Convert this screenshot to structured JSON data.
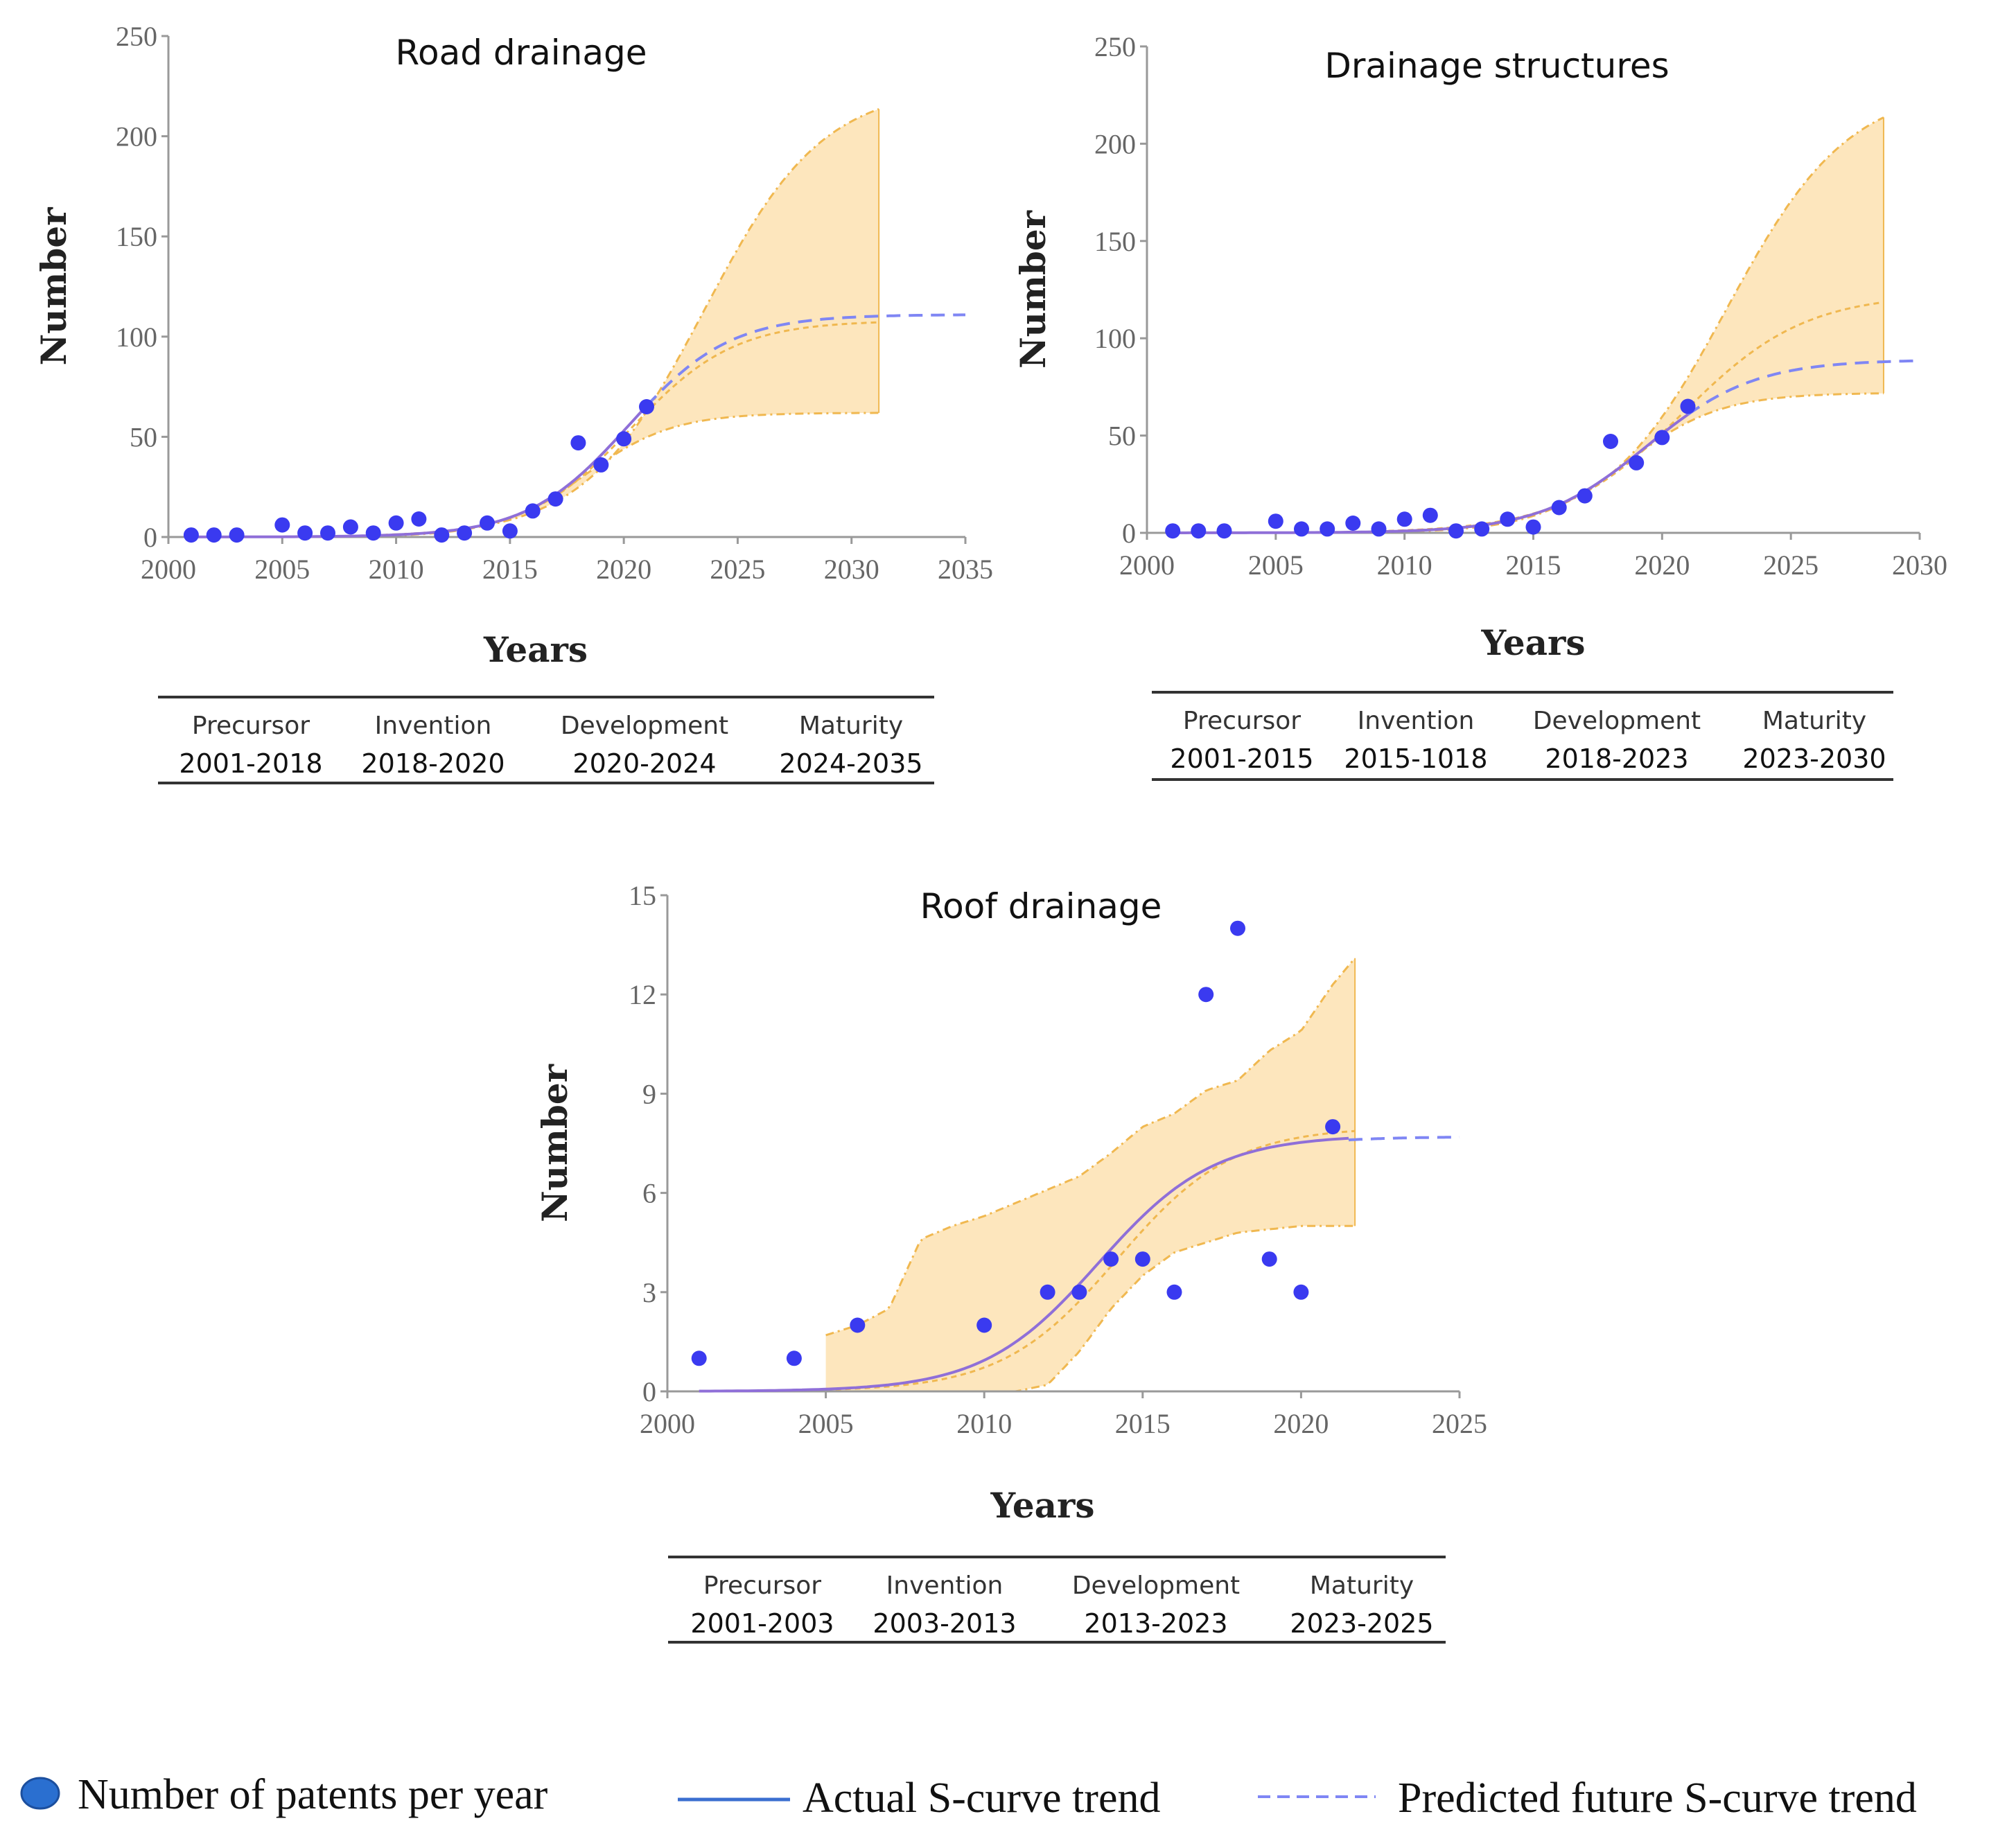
{
  "colors": {
    "point": "#3a3af0",
    "actual": "#8f6fd8",
    "predicted": "#7f86f4",
    "band_fill": "#fde6bd",
    "band_edge": "#f0b850",
    "axis": "#999999",
    "legend_line": "#3b6fd0",
    "legend_marker": "#2a6fd0"
  },
  "legend": {
    "points_label": "Number of patents per year",
    "actual_label": "Actual S-curve trend",
    "predicted_label": "Predicted future S-curve trend"
  },
  "chart_data": [
    {
      "id": "road",
      "type": "scatter",
      "title": "Road drainage",
      "xlabel": "Years",
      "ylabel": "Number",
      "xlim": [
        2000,
        2035
      ],
      "ylim": [
        0,
        250
      ],
      "xticks": [
        "2000",
        "2005",
        "2010",
        "2015",
        "2020",
        "2025",
        "2030",
        "2035"
      ],
      "yticks": [
        "0",
        "50",
        "100",
        "150",
        "200",
        "250"
      ],
      "points": [
        [
          2001,
          1
        ],
        [
          2002,
          1
        ],
        [
          2003,
          1
        ],
        [
          2005,
          6
        ],
        [
          2006,
          2
        ],
        [
          2007,
          2
        ],
        [
          2008,
          5
        ],
        [
          2009,
          2
        ],
        [
          2010,
          7
        ],
        [
          2011,
          9
        ],
        [
          2012,
          1
        ],
        [
          2013,
          2
        ],
        [
          2014,
          7
        ],
        [
          2015,
          3
        ],
        [
          2016,
          13
        ],
        [
          2017,
          19
        ],
        [
          2018,
          47
        ],
        [
          2019,
          36
        ],
        [
          2020,
          49
        ],
        [
          2021,
          65
        ]
      ],
      "actual_curve": {
        "K": 111,
        "x0": 2020.2,
        "k": 0.45,
        "from": 2001,
        "to": 2021
      },
      "predicted_curve": {
        "K": 111,
        "x0": 2020.2,
        "k": 0.45,
        "from": 2021,
        "to": 2035
      },
      "band": {
        "from": 2009,
        "to": 2031.2,
        "upper": {
          "K": 225,
          "x0": 2023.5,
          "k": 0.38
        },
        "lower": {
          "K": 62,
          "x0": 2018.3,
          "k": 0.52
        },
        "mid": {
          "K": 108,
          "x0": 2020.3,
          "k": 0.44
        }
      },
      "stages": [
        {
          "name": "Precursor",
          "range": "2001-2018"
        },
        {
          "name": "Invention",
          "range": "2018-2020"
        },
        {
          "name": "Development",
          "range": "2020-2024"
        },
        {
          "name": "Maturity",
          "range": "2024-2035"
        }
      ]
    },
    {
      "id": "structures",
      "type": "scatter",
      "title": "Drainage structures",
      "xlabel": "Years",
      "ylabel": "Number",
      "xlim": [
        2000,
        2030
      ],
      "ylim": [
        0,
        250
      ],
      "xticks": [
        "2000",
        "2005",
        "2010",
        "2015",
        "2020",
        "2025",
        "2030"
      ],
      "yticks": [
        "0",
        "50",
        "100",
        "150",
        "200",
        "250"
      ],
      "points": [
        [
          2001,
          1
        ],
        [
          2002,
          1
        ],
        [
          2003,
          1
        ],
        [
          2005,
          6
        ],
        [
          2006,
          2
        ],
        [
          2007,
          2
        ],
        [
          2008,
          5
        ],
        [
          2009,
          2
        ],
        [
          2010,
          7
        ],
        [
          2011,
          9
        ],
        [
          2012,
          1
        ],
        [
          2013,
          2
        ],
        [
          2014,
          7
        ],
        [
          2015,
          3
        ],
        [
          2016,
          13
        ],
        [
          2017,
          19
        ],
        [
          2018,
          47
        ],
        [
          2019,
          36
        ],
        [
          2020,
          49
        ],
        [
          2021,
          65
        ]
      ],
      "actual_curve": {
        "K": 89,
        "x0": 2019.4,
        "k": 0.48,
        "from": 2001,
        "to": 2021
      },
      "predicted_curve": {
        "K": 89,
        "x0": 2019.4,
        "k": 0.48,
        "from": 2021,
        "to": 2030
      },
      "band": {
        "from": 2009,
        "to": 2028.6,
        "upper": {
          "K": 230,
          "x0": 2022.5,
          "k": 0.42
        },
        "lower": {
          "K": 72,
          "x0": 2018.6,
          "k": 0.55
        },
        "mid": {
          "K": 123,
          "x0": 2020.8,
          "k": 0.42
        }
      },
      "stages": [
        {
          "name": "Precursor",
          "range": "2001-2015"
        },
        {
          "name": "Invention",
          "range": "2015-1018"
        },
        {
          "name": "Development",
          "range": "2018-2023"
        },
        {
          "name": "Maturity",
          "range": "2023-2030"
        }
      ]
    },
    {
      "id": "roof",
      "type": "scatter",
      "title": "Roof drainage",
      "xlabel": "Years",
      "ylabel": "Number",
      "xlim": [
        2000,
        2025
      ],
      "ylim": [
        0,
        15
      ],
      "xticks": [
        "2000",
        "2005",
        "2010",
        "2015",
        "2020",
        "2025"
      ],
      "yticks": [
        "0",
        "3",
        "6",
        "9",
        "12",
        "15"
      ],
      "points": [
        [
          2001,
          1
        ],
        [
          2004,
          1
        ],
        [
          2006,
          2
        ],
        [
          2010,
          2
        ],
        [
          2012,
          3
        ],
        [
          2013,
          3
        ],
        [
          2014,
          4
        ],
        [
          2015,
          4
        ],
        [
          2016,
          3
        ],
        [
          2017,
          12
        ],
        [
          2018,
          14
        ],
        [
          2019,
          4
        ],
        [
          2020,
          3
        ],
        [
          2021,
          8
        ]
      ],
      "actual_curve": {
        "K": 7.75,
        "x0": 2013.6,
        "k": 0.55,
        "from": 2001,
        "to": 2021.5
      },
      "predicted_curve": {
        "K": 7.7,
        "x0": 2013.6,
        "k": 0.55,
        "from": 2021.5,
        "to": 2025
      },
      "band": {
        "from": 2005,
        "to": 2021.7,
        "upper_pts": [
          [
            2005,
            1.7
          ],
          [
            2006,
            2.0
          ],
          [
            2007,
            2.5
          ],
          [
            2008,
            4.6
          ],
          [
            2009,
            5.0
          ],
          [
            2010,
            5.3
          ],
          [
            2011,
            5.7
          ],
          [
            2012,
            6.1
          ],
          [
            2013,
            6.5
          ],
          [
            2014,
            7.2
          ],
          [
            2015,
            8.0
          ],
          [
            2016,
            8.4
          ],
          [
            2017,
            9.1
          ],
          [
            2018,
            9.4
          ],
          [
            2019,
            10.3
          ],
          [
            2020,
            10.9
          ],
          [
            2021,
            12.3
          ],
          [
            2021.7,
            13.1
          ]
        ],
        "lower_pts": [
          [
            2005,
            0.0
          ],
          [
            2006,
            0.0
          ],
          [
            2007,
            0.0
          ],
          [
            2008,
            0.0
          ],
          [
            2009,
            0.0
          ],
          [
            2010,
            0.0
          ],
          [
            2011,
            0.0
          ],
          [
            2012,
            0.2
          ],
          [
            2013,
            1.2
          ],
          [
            2014,
            2.5
          ],
          [
            2015,
            3.5
          ],
          [
            2016,
            4.2
          ],
          [
            2017,
            4.5
          ],
          [
            2018,
            4.8
          ],
          [
            2019,
            4.9
          ],
          [
            2020,
            5.0
          ],
          [
            2021,
            5.0
          ],
          [
            2021.7,
            5.0
          ]
        ],
        "mid": {
          "K": 8.0,
          "x0": 2014.2,
          "k": 0.55
        }
      },
      "stages": [
        {
          "name": "Precursor",
          "range": "2001-2003"
        },
        {
          "name": "Invention",
          "range": "2003-2013"
        },
        {
          "name": "Development",
          "range": "2013-2023"
        },
        {
          "name": "Maturity",
          "range": "2023-2025"
        }
      ]
    }
  ]
}
